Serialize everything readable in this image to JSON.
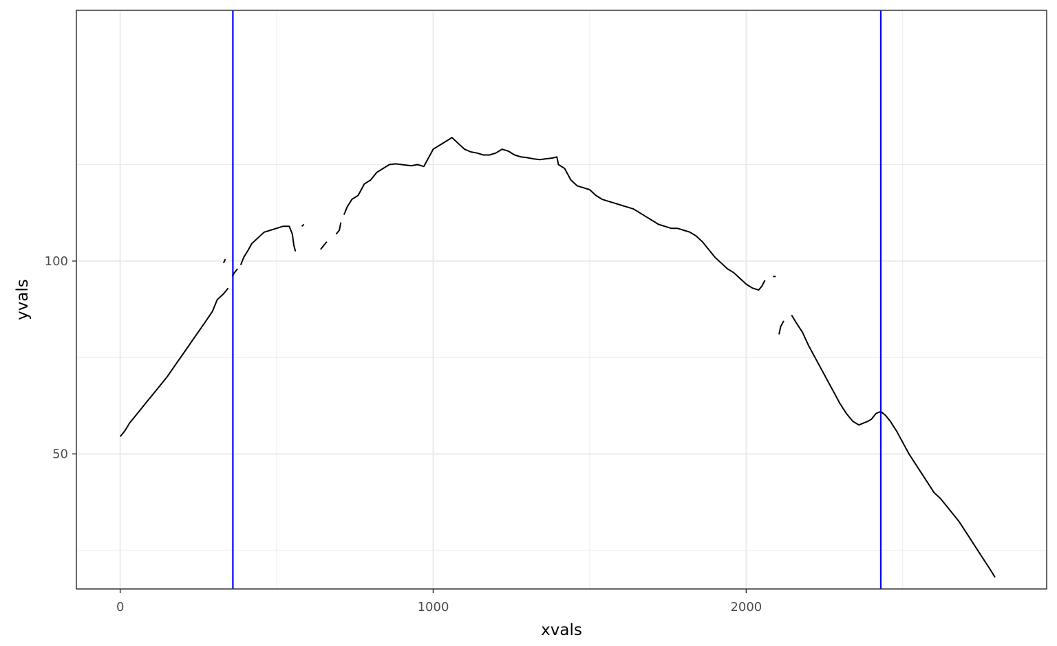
{
  "chart_data": {
    "type": "line",
    "title": "",
    "xlabel": "xvals",
    "ylabel": "yvals",
    "xlim": [
      -140,
      2960
    ],
    "ylim": [
      15,
      165
    ],
    "x_ticks": [
      0,
      1000,
      2000
    ],
    "x_tick_labels": [
      "0",
      "1000",
      "2000"
    ],
    "y_ticks": [
      50,
      100
    ],
    "y_tick_labels": [
      "50",
      "100"
    ],
    "x_minor_grid": [
      500,
      1500,
      2500
    ],
    "y_minor_grid": [
      25,
      75,
      125
    ],
    "grid": true,
    "legend": "none",
    "colors": {
      "line": "#000000",
      "vline": "#0000ff",
      "grid": "#ebebeb",
      "panel_border": "#333333"
    },
    "vlines": [
      360,
      2430
    ],
    "series": [
      {
        "segments": [
          [
            [
              0,
              54.5
            ],
            [
              15,
              56
            ],
            [
              30,
              58
            ],
            [
              60,
              61
            ],
            [
              90,
              64
            ],
            [
              120,
              67
            ],
            [
              150,
              70
            ],
            [
              180,
              73.5
            ],
            [
              210,
              77
            ],
            [
              240,
              80.5
            ],
            [
              270,
              84
            ],
            [
              295,
              87
            ],
            [
              310,
              90
            ],
            [
              330,
              91.5
            ],
            [
              345,
              93
            ]
          ],
          [
            [
              330,
              99.5
            ],
            [
              336,
              100.5
            ]
          ],
          [
            [
              358,
              96
            ],
            [
              365,
              97
            ],
            [
              375,
              98
            ]
          ],
          [
            [
              385,
              99
            ],
            [
              395,
              101
            ],
            [
              410,
              103
            ],
            [
              420,
              104.5
            ],
            [
              440,
              106
            ],
            [
              460,
              107.5
            ],
            [
              480,
              108
            ],
            [
              500,
              108.5
            ],
            [
              520,
              109
            ],
            [
              540,
              109
            ],
            [
              550,
              107
            ],
            [
              555,
              104
            ],
            [
              560,
              102.5
            ]
          ],
          [
            [
              580,
              109
            ],
            [
              587,
              109.5
            ]
          ],
          [
            [
              640,
              103
            ],
            [
              650,
              104
            ],
            [
              660,
              105
            ]
          ],
          [
            [
              690,
              107
            ],
            [
              700,
              108
            ],
            [
              705,
              110
            ]
          ],
          [
            [
              715,
              112
            ],
            [
              725,
              114
            ],
            [
              740,
              116
            ],
            [
              760,
              117
            ],
            [
              780,
              120
            ],
            [
              800,
              121
            ],
            [
              820,
              123
            ],
            [
              840,
              124
            ],
            [
              860,
              125
            ],
            [
              880,
              125.2
            ],
            [
              900,
              125
            ],
            [
              930,
              124.7
            ],
            [
              950,
              125
            ],
            [
              970,
              124.5
            ],
            [
              980,
              126
            ],
            [
              1000,
              129
            ],
            [
              1020,
              130
            ],
            [
              1040,
              131
            ],
            [
              1060,
              132
            ],
            [
              1080,
              130.5
            ],
            [
              1100,
              129
            ],
            [
              1120,
              128.3
            ],
            [
              1140,
              128
            ],
            [
              1160,
              127.5
            ],
            [
              1180,
              127.5
            ],
            [
              1200,
              128
            ],
            [
              1220,
              129
            ],
            [
              1240,
              128.5
            ],
            [
              1260,
              127.5
            ],
            [
              1280,
              127
            ],
            [
              1300,
              126.8
            ],
            [
              1320,
              126.5
            ],
            [
              1340,
              126.3
            ],
            [
              1360,
              126.5
            ],
            [
              1380,
              126.7
            ],
            [
              1395,
              127
            ],
            [
              1400,
              125
            ],
            [
              1420,
              124
            ],
            [
              1440,
              121
            ],
            [
              1460,
              119.5
            ],
            [
              1480,
              119
            ],
            [
              1500,
              118.5
            ],
            [
              1520,
              117
            ],
            [
              1540,
              116
            ],
            [
              1560,
              115.5
            ],
            [
              1580,
              115
            ],
            [
              1600,
              114.5
            ],
            [
              1620,
              114
            ],
            [
              1640,
              113.5
            ],
            [
              1660,
              112.5
            ],
            [
              1680,
              111.5
            ],
            [
              1700,
              110.5
            ],
            [
              1720,
              109.5
            ],
            [
              1740,
              109
            ],
            [
              1760,
              108.5
            ],
            [
              1780,
              108.5
            ],
            [
              1800,
              108
            ],
            [
              1820,
              107.5
            ],
            [
              1840,
              106.5
            ],
            [
              1860,
              105
            ],
            [
              1880,
              103
            ],
            [
              1900,
              101
            ],
            [
              1920,
              99.5
            ],
            [
              1940,
              98
            ],
            [
              1960,
              97
            ],
            [
              1980,
              95.5
            ],
            [
              2000,
              94
            ],
            [
              2020,
              93
            ],
            [
              2040,
              92.5
            ],
            [
              2050,
              93.5
            ],
            [
              2060,
              95
            ]
          ],
          [
            [
              2090,
              96
            ]
          ],
          [
            [
              2105,
              81
            ],
            [
              2110,
              83
            ],
            [
              2120,
              84.5
            ]
          ],
          [
            [
              2145,
              86
            ],
            [
              2160,
              84
            ],
            [
              2180,
              81.5
            ],
            [
              2200,
              78
            ],
            [
              2220,
              75
            ],
            [
              2240,
              72
            ],
            [
              2260,
              69
            ],
            [
              2280,
              66
            ],
            [
              2300,
              63
            ],
            [
              2320,
              60.5
            ],
            [
              2340,
              58.5
            ],
            [
              2360,
              57.5
            ],
            [
              2375,
              58
            ],
            [
              2390,
              58.5
            ],
            [
              2400,
              59
            ],
            [
              2415,
              60.5
            ],
            [
              2430,
              61
            ],
            [
              2445,
              60
            ],
            [
              2460,
              58.5
            ],
            [
              2480,
              56
            ],
            [
              2500,
              53
            ],
            [
              2520,
              50
            ],
            [
              2540,
              47.5
            ],
            [
              2560,
              45
            ],
            [
              2580,
              42.5
            ],
            [
              2600,
              40
            ],
            [
              2620,
              38.5
            ],
            [
              2640,
              36.5
            ],
            [
              2660,
              34.5
            ],
            [
              2680,
              32.5
            ],
            [
              2700,
              30
            ],
            [
              2720,
              27.5
            ],
            [
              2740,
              25
            ],
            [
              2760,
              22.5
            ],
            [
              2780,
              20
            ],
            [
              2795,
              18
            ]
          ]
        ]
      }
    ]
  }
}
